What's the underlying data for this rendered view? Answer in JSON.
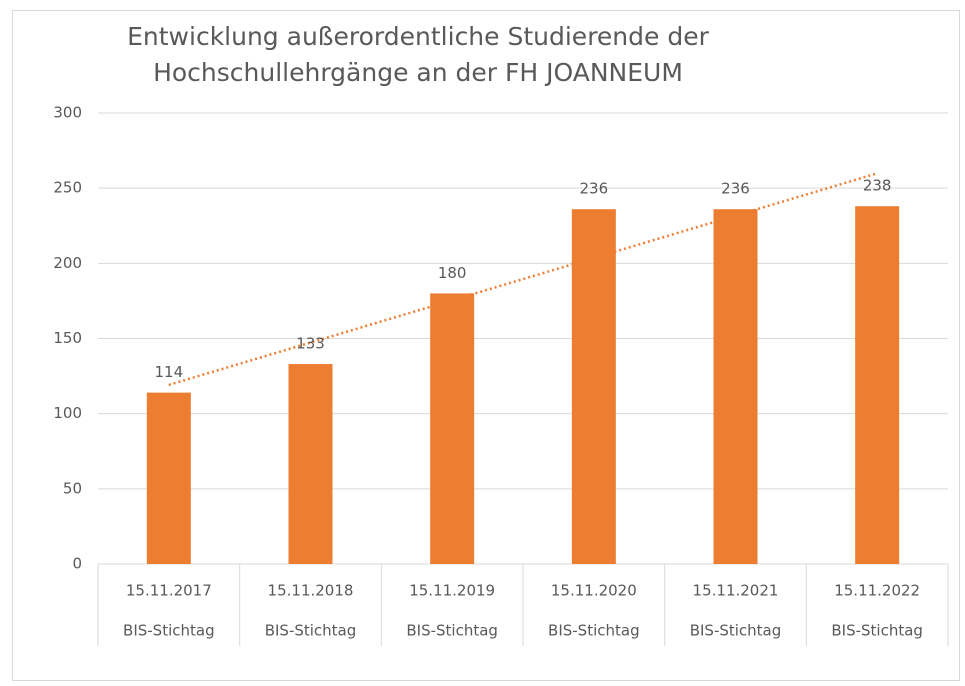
{
  "chart_data": {
    "type": "bar",
    "title": [
      "Entwicklung außerordentliche Studierende der",
      "Hochschullehrgänge an der FH JOANNEUM"
    ],
    "categories": [
      [
        "15.11.2017",
        "BIS-Stichtag"
      ],
      [
        "15.11.2018",
        "BIS-Stichtag"
      ],
      [
        "15.11.2019",
        "BIS-Stichtag"
      ],
      [
        "15.11.2020",
        "BIS-Stichtag"
      ],
      [
        "15.11.2021",
        "BIS-Stichtag"
      ],
      [
        "15.11.2022",
        "BIS-Stichtag"
      ]
    ],
    "values": [
      114,
      133,
      180,
      236,
      236,
      238
    ],
    "color": "#ed7d31",
    "ylim": [
      0,
      300
    ],
    "yticks": [
      0,
      50,
      100,
      150,
      200,
      250,
      300
    ],
    "grid": true,
    "data_labels": true,
    "trendline": "linear"
  }
}
